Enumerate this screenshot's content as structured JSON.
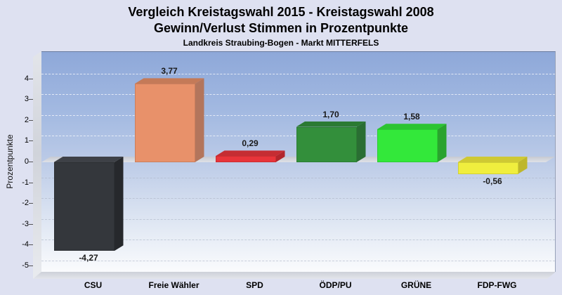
{
  "header": {
    "title_line1": "Vergleich Kreistagswahl 2015 - Kreistagswahl 2008",
    "title_line2": "Gewinn/Verlust Stimmen in Prozentpunkte",
    "subtitle": "Landkreis Straubing-Bogen - Markt MITTERFELS"
  },
  "chart_data": {
    "type": "bar",
    "style": "3d-columns",
    "title": "Vergleich Kreistagswahl 2015 - Kreistagswahl 2008 / Gewinn/Verlust Stimmen in Prozentpunkte",
    "subtitle": "Landkreis Straubing-Bogen - Markt MITTERFELS",
    "categories": [
      "CSU",
      "Freie Wähler",
      "SPD",
      "ÖDP/PU",
      "GRÜNE",
      "FDP-FWG"
    ],
    "values": [
      -4.27,
      3.77,
      0.29,
      1.7,
      1.58,
      -0.56
    ],
    "value_labels": [
      "-4,27",
      "3,77",
      "0,29",
      "1,70",
      "1,58",
      "-0,56"
    ],
    "xlabel": "",
    "ylabel": "Prozentpunkte",
    "ylim": [
      -5,
      5.3
    ],
    "yticks": [
      4,
      3,
      2,
      1,
      0,
      -1,
      -2,
      -3,
      -4,
      -5
    ],
    "grid": "horizontal dashed",
    "legend": "none",
    "bar_colors": [
      {
        "front": "#34373c",
        "top": "#3e4147",
        "side": "#26282c"
      },
      {
        "front": "#e8916a",
        "top": "#c47a58",
        "side": "#b3755c"
      },
      {
        "front": "#e8343a",
        "top": "#c52d33",
        "side": "#b2262c"
      },
      {
        "front": "#338f3b",
        "top": "#2b7a33",
        "side": "#2a6e33"
      },
      {
        "front": "#33e83a",
        "top": "#2bc432",
        "side": "#2aa32e"
      },
      {
        "front": "#f0ee3e",
        "top": "#cfc933",
        "side": "#beb72b"
      }
    ],
    "background_plot_gradient": [
      "#8ea8d9",
      "#fafbfd"
    ],
    "page_background": "#dee1f1"
  }
}
